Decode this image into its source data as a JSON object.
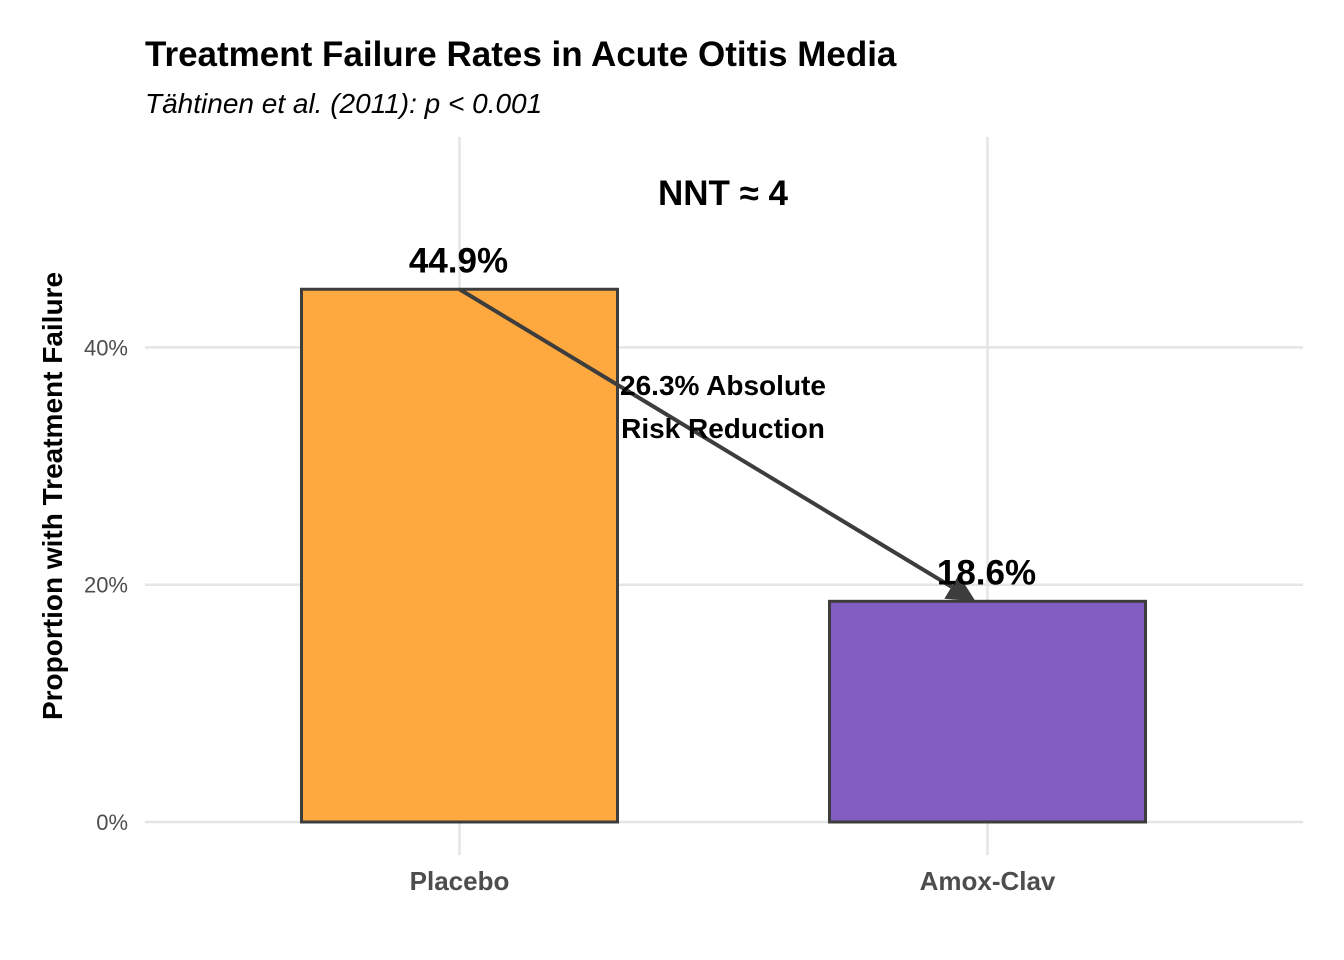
{
  "chart_data": {
    "type": "bar",
    "title": "Treatment Failure Rates in Acute Otitis Media",
    "subtitle": "Tähtinen et al. (2011): p < 0.001",
    "xlabel": "",
    "ylabel": "Proportion with Treatment Failure",
    "categories": [
      "Placebo",
      "Amox-Clav"
    ],
    "values": [
      44.9,
      18.6
    ],
    "value_labels": [
      "44.9%",
      "18.6%"
    ],
    "colors": [
      "#FDA93F",
      "#825DC1"
    ],
    "bar_border_color": "#3D3D3D",
    "ylim": [
      0,
      50
    ],
    "yticks": [
      0,
      20,
      40
    ],
    "ytick_labels": [
      "0%",
      "20%",
      "40%"
    ],
    "grid": true,
    "legend": "none",
    "annotations": {
      "nnt": "NNT ≈ 4",
      "reduction_line1": "26.3% Absolute",
      "reduction_line2": "Risk Reduction",
      "arrow": {
        "from_category": "Placebo",
        "from_value": 44.9,
        "to_category": "Amox-Clav",
        "to_value": 18.6
      }
    }
  }
}
